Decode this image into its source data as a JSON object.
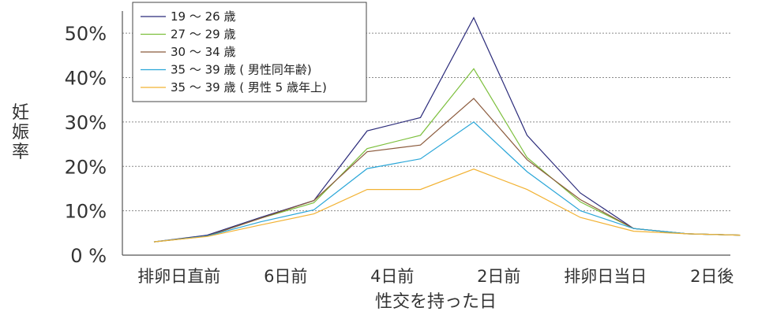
{
  "chart_data": {
    "type": "line",
    "title": "",
    "xlabel": "性交を持った日",
    "ylabel": "妊娠率",
    "x_points": [
      "",
      "",
      "",
      "",
      "",
      "",
      "",
      "",
      "",
      "",
      "",
      ""
    ],
    "x_ticks": [
      "排卵日直前",
      "6日前",
      "4日前",
      "2日前",
      "排卵日当日",
      "2日後"
    ],
    "y_ticks": [
      "0 %",
      "10%",
      "20%",
      "30%",
      "40%",
      "50%"
    ],
    "ylim": [
      0,
      55
    ],
    "grid": "horizontal dotted",
    "legend_position": "top-left",
    "series": [
      {
        "name": "19 〜 26 歳",
        "color": "#2b2b7a",
        "values": [
          3,
          4.5,
          8.5,
          12.3,
          28,
          31,
          53.5,
          27,
          14,
          6,
          4.8,
          4.5
        ]
      },
      {
        "name": "27 〜 29 歳",
        "color": "#7cbf3c",
        "values": [
          3,
          4.3,
          8.3,
          11.8,
          24,
          27,
          42,
          22,
          12,
          6,
          4.8,
          4.5
        ]
      },
      {
        "name": "30 〜 34 歳",
        "color": "#8b5a3c",
        "values": [
          3,
          4.3,
          8.3,
          12.3,
          23.3,
          24.8,
          35.3,
          21.5,
          12.5,
          6,
          4.8,
          4.5
        ]
      },
      {
        "name": "35 〜 39 歳 ( 男性同年齢)",
        "color": "#2aa6d8",
        "values": [
          3,
          4.3,
          7.5,
          10.2,
          19.5,
          21.7,
          30,
          18.8,
          10,
          6,
          4.8,
          4.5
        ]
      },
      {
        "name": "35 〜 39 歳 ( 男性 5 歳年上)",
        "color": "#f2b233",
        "values": [
          3,
          4.2,
          6.8,
          9.3,
          14.8,
          14.8,
          19.4,
          14.8,
          8.5,
          5.4,
          4.8,
          4.5
        ]
      }
    ]
  }
}
